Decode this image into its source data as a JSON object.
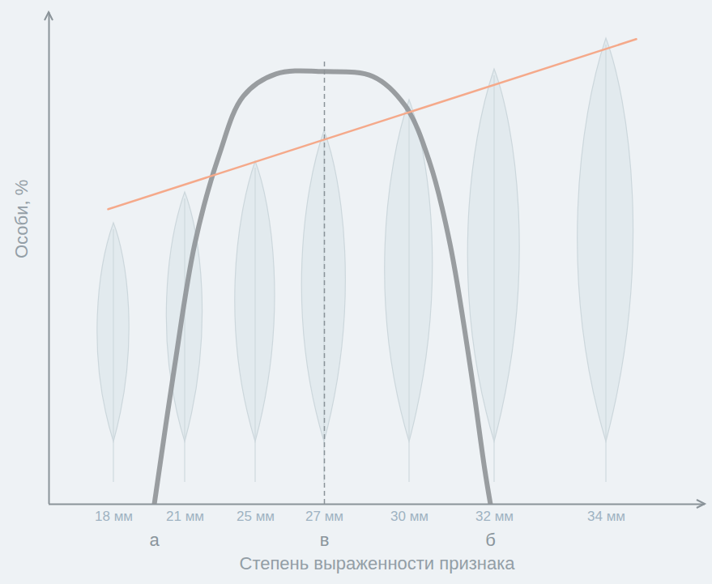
{
  "chart_data": {
    "type": "line",
    "y_label": "Особи, %",
    "x_label": "Степень выраженности признака",
    "xlim": [
      0,
      8.1
    ],
    "ylim": [
      0,
      100
    ],
    "xticks": [
      {
        "value": 0.8,
        "label": "18 мм"
      },
      {
        "value": 1.68,
        "label": "21 мм"
      },
      {
        "value": 2.55,
        "label": "25 мм"
      },
      {
        "value": 3.4,
        "label": "27 мм"
      },
      {
        "value": 4.45,
        "label": "30 мм"
      },
      {
        "value": 5.5,
        "label": "32 мм"
      },
      {
        "value": 6.88,
        "label": "34 мм"
      }
    ],
    "yticks": [],
    "tick_labels": "x",
    "grid": false,
    "series": [
      {
        "color": "#8f9397",
        "line_style": "solid",
        "x": [
          1.3,
          1.55,
          1.8,
          2.1,
          2.4,
          2.8,
          3.4,
          4.0,
          4.4,
          4.7,
          4.95,
          5.2,
          5.38,
          5.45
        ],
        "values": [
          0,
          28,
          53,
          71,
          83,
          87.5,
          88,
          87,
          81,
          69.5,
          53,
          28,
          7,
          0
        ]
      },
      {
        "color": "#f5a98a",
        "line_style": "solid",
        "x": [
          0.73,
          7.25
        ],
        "values": [
          60,
          94.6
        ]
      }
    ],
    "annotations": [
      {
        "text": "а",
        "x": 1.3
      },
      {
        "text": "в",
        "x": 3.4,
        "y": 90,
        "line_style": "dashed"
      },
      {
        "text": "б",
        "x": 5.45
      }
    ]
  }
}
